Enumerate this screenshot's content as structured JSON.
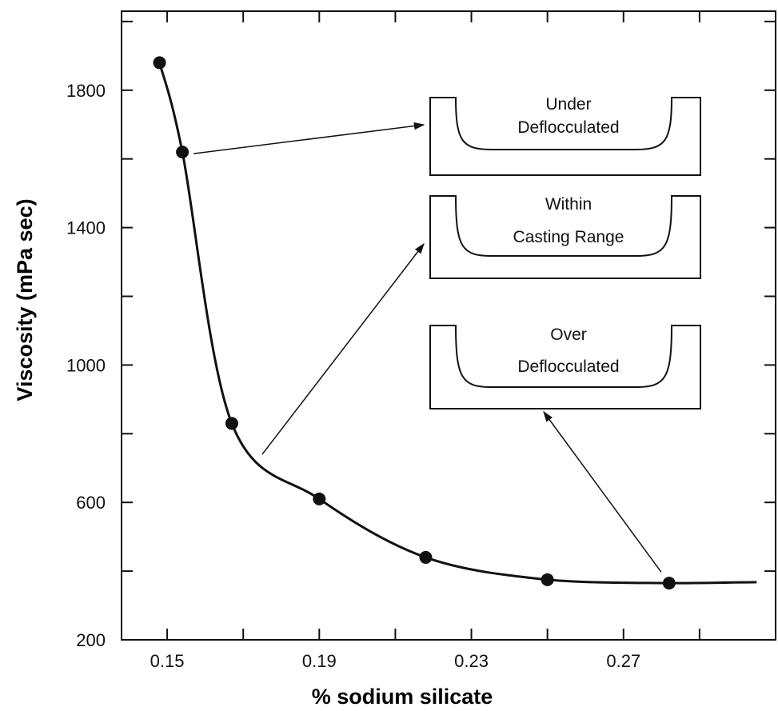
{
  "chart_data": {
    "type": "line",
    "xlabel": "% sodium silicate",
    "ylabel": "Viscosity (mPa sec)",
    "xlim": [
      0.138,
      0.31
    ],
    "ylim": [
      200,
      2030
    ],
    "x_ticks": [
      0.15,
      0.19,
      0.23,
      0.27
    ],
    "x_tick_labels": [
      "0.15",
      "0.19",
      "0.23",
      "0.27"
    ],
    "y_ticks": [
      200,
      600,
      1000,
      1400,
      1800
    ],
    "y_tick_labels": [
      "200",
      "600",
      "1000",
      "1400",
      "1800"
    ],
    "grid": false,
    "series": [
      {
        "x": [
          0.148,
          0.154,
          0.167,
          0.19,
          0.218,
          0.25,
          0.282
        ],
        "y": [
          1880,
          1620,
          830,
          610,
          440,
          375,
          365
        ]
      }
    ],
    "curve_end": {
      "x": 0.305,
      "y": 368
    },
    "annotations": [
      {
        "lines": [
          "Under",
          "Deflocculated"
        ],
        "points_to": {
          "x": 0.154,
          "y": 1620
        }
      },
      {
        "lines": [
          "Within",
          "Casting Range"
        ],
        "points_to": {
          "x": 0.175,
          "y": 740
        }
      },
      {
        "lines": [
          "Over",
          "Deflocculated"
        ],
        "points_to": {
          "x": 0.282,
          "y": 365
        }
      }
    ]
  }
}
